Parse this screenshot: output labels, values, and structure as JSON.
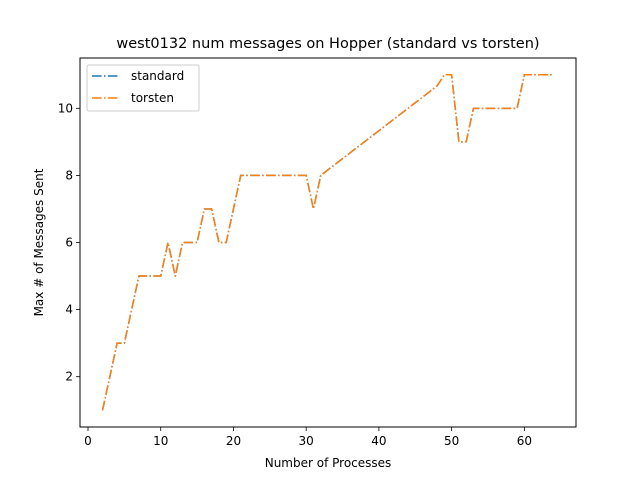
{
  "chart_data": {
    "type": "line",
    "title": "west0132 num messages on Hopper (standard vs torsten)",
    "xlabel": "Number of Processes",
    "ylabel": "Max # of Messages Sent",
    "xlim": [
      -1.1,
      67.1
    ],
    "ylim": [
      0.5,
      11.5
    ],
    "xticks": [
      0,
      10,
      20,
      30,
      40,
      50,
      60
    ],
    "yticks": [
      2,
      4,
      6,
      8,
      10
    ],
    "grid": false,
    "legend": "top-left",
    "line_style": "dash-dot",
    "x": [
      2,
      3,
      4,
      5,
      6,
      7,
      8,
      9,
      10,
      11,
      12,
      13,
      14,
      15,
      16,
      17,
      18,
      19,
      20,
      21,
      22,
      23,
      24,
      25,
      26,
      27,
      28,
      29,
      30,
      31,
      32,
      33,
      34,
      35,
      36,
      37,
      38,
      39,
      40,
      41,
      42,
      43,
      44,
      45,
      46,
      47,
      48,
      49,
      50,
      51,
      52,
      53,
      54,
      55,
      56,
      57,
      58,
      59,
      60,
      61,
      62,
      63,
      64
    ],
    "series": [
      {
        "name": "standard",
        "color": "#1f77b4",
        "values": [
          1,
          2,
          3,
          3,
          4,
          5,
          5,
          5,
          5,
          6,
          5,
          6,
          6,
          6,
          7,
          7,
          6,
          6,
          7,
          8,
          8,
          8,
          8,
          8,
          8,
          8,
          8,
          8,
          8,
          7,
          8,
          8.1667,
          8.3333,
          8.5,
          8.6667,
          8.8333,
          9,
          9.1667,
          9.3333,
          9.5,
          9.6667,
          9.8333,
          10,
          10.1667,
          10.3333,
          10.5,
          10.6667,
          11,
          11,
          9,
          9,
          10,
          10,
          10,
          10,
          10,
          10,
          10,
          11,
          11,
          11,
          11,
          11
        ]
      },
      {
        "name": "torsten",
        "color": "#ff7f0e",
        "values": [
          1,
          2,
          3,
          3,
          4,
          5,
          5,
          5,
          5,
          6,
          5,
          6,
          6,
          6,
          7,
          7,
          6,
          6,
          7,
          8,
          8,
          8,
          8,
          8,
          8,
          8,
          8,
          8,
          8,
          7,
          8,
          8.1667,
          8.3333,
          8.5,
          8.6667,
          8.8333,
          9,
          9.1667,
          9.3333,
          9.5,
          9.6667,
          9.8333,
          10,
          10.1667,
          10.3333,
          10.5,
          10.6667,
          11,
          11,
          9,
          9,
          10,
          10,
          10,
          10,
          10,
          10,
          10,
          11,
          11,
          11,
          11,
          11
        ]
      }
    ]
  }
}
